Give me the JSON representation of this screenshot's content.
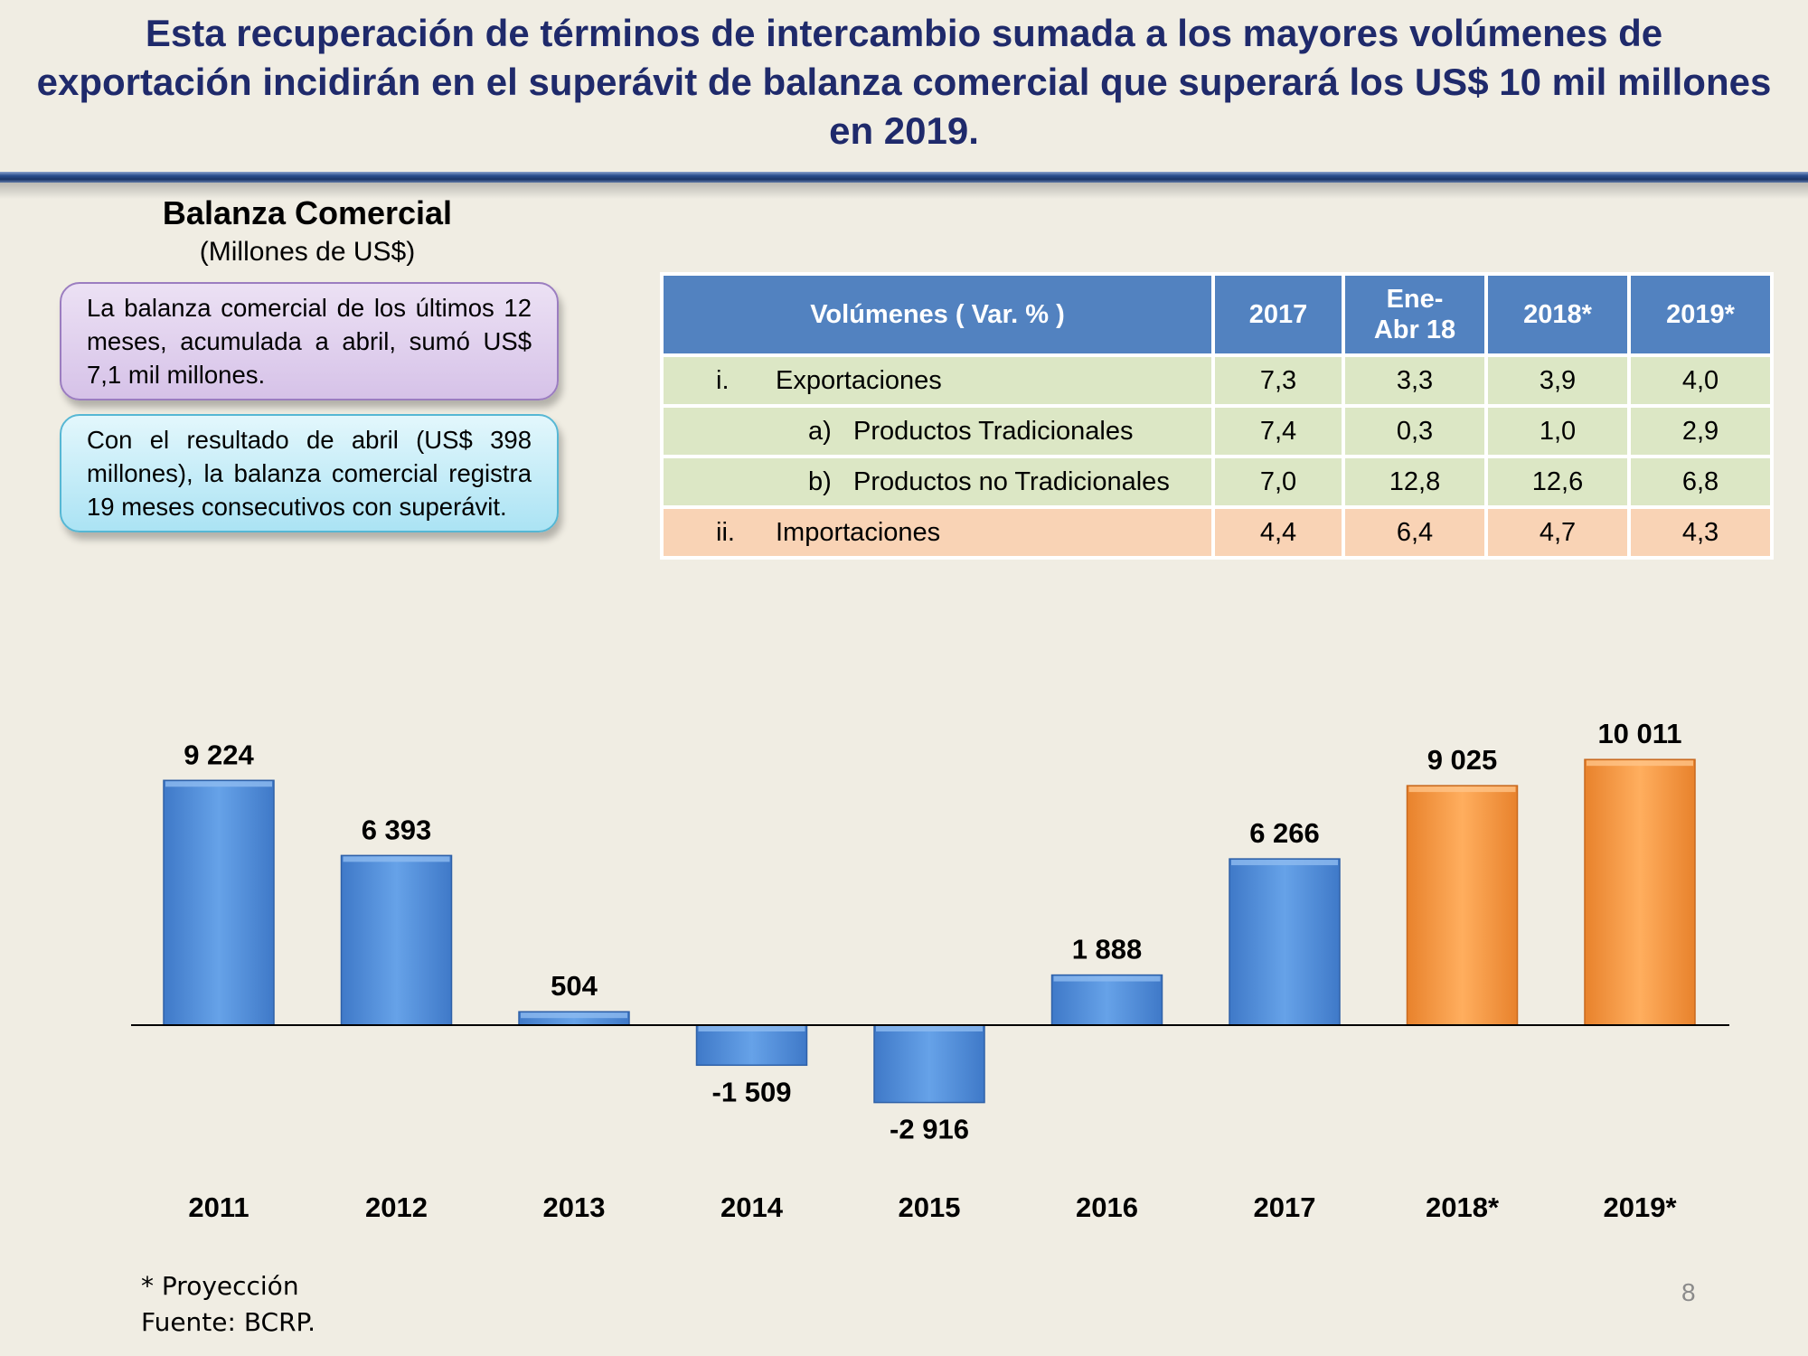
{
  "title": "Esta recuperación de términos de intercambio sumada a los mayores volúmenes de exportación incidirán en el superávit de balanza comercial que superará los US$ 10 mil millones en 2019.",
  "chart_heading": "Balanza Comercial",
  "chart_unit": "(Millones de US$)",
  "callouts": [
    "La balanza comercial de los últimos 12 meses, acumulada a abril, sumó US$ 7,1 mil millones.",
    "Con el resultado de abril (US$ 398 millones), la balanza comercial registra 19 meses consecutivos con superávit."
  ],
  "table": {
    "header": {
      "label": "Volúmenes ( Var. % )",
      "cols": [
        "2017",
        "Ene-\nAbr 18",
        "2018*",
        "2019*"
      ]
    },
    "rows": [
      {
        "marker": "i.",
        "label": "Exportaciones",
        "values": [
          "7,3",
          "3,3",
          "3,9",
          "4,0"
        ]
      },
      {
        "marker": "a)",
        "label": "Productos Tradicionales",
        "values": [
          "7,4",
          "0,3",
          "1,0",
          "2,9"
        ]
      },
      {
        "marker": "b)",
        "label": "Productos no Tradicionales",
        "values": [
          "7,0",
          "12,8",
          "12,6",
          "6,8"
        ]
      },
      {
        "marker": "ii.",
        "label": "Importaciones",
        "values": [
          "4,4",
          "6,4",
          "4,7",
          "4,3"
        ]
      }
    ]
  },
  "chart_data": {
    "type": "bar",
    "title": "Balanza Comercial",
    "subtitle": "(Millones de US$)",
    "categories": [
      "2011",
      "2012",
      "2013",
      "2014",
      "2015",
      "2016",
      "2017",
      "2018*",
      "2019*"
    ],
    "values": [
      9224,
      6393,
      504,
      -1509,
      -2916,
      1888,
      6266,
      9025,
      10011
    ],
    "labels": [
      "9 224",
      "6 393",
      "504",
      "-1 509",
      "-2 916",
      "1 888",
      "6 266",
      "9 025",
      "10 011"
    ],
    "projected": [
      false,
      false,
      false,
      false,
      false,
      false,
      false,
      true,
      true
    ],
    "colors": {
      "actual": "#5b93d9",
      "projected": "#f79d48"
    },
    "xlabel": "",
    "ylabel": "",
    "ylim": [
      -3500,
      11000
    ],
    "grid": false,
    "legend": "none"
  },
  "footnote": "* Proyección",
  "source": "Fuente: BCRP.",
  "page_number": "8"
}
